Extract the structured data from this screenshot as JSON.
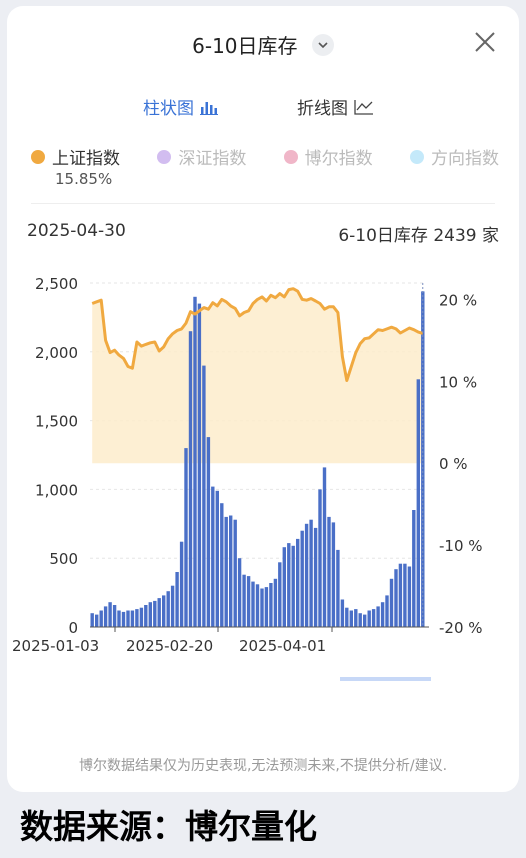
{
  "header": {
    "title": "6-10日库存"
  },
  "tabs": [
    {
      "label": "柱状图",
      "icon": "bar-chart-icon"
    },
    {
      "label": "折线图",
      "icon": "line-chart-icon"
    }
  ],
  "legend": [
    {
      "label": "上证指数",
      "color": "#f0a940",
      "active": true
    },
    {
      "label": "深证指数",
      "color": "#d2bdf0",
      "active": false
    },
    {
      "label": "博尔指数",
      "color": "#f0b6c8",
      "active": false
    },
    {
      "label": "方向指数",
      "color": "#c4e9fa",
      "active": false
    }
  ],
  "legend_value": "15.85%",
  "info": {
    "date": "2025-04-30",
    "stock_label": "6-10日库存 2439 家"
  },
  "disclaimer": "博尔数据结果仅为历史表现,无法预测未来,不提供分析/建议.",
  "source": "数据来源：博尔量化",
  "chart_data": {
    "type": "bar",
    "x_ticks": [
      "2025-01-03",
      "2025-02-20",
      "2025-04-01"
    ],
    "left_axis": {
      "ticks": [
        "0",
        "500",
        "1,000",
        "1,500",
        "2,000",
        "2,500"
      ],
      "ylim": [
        0,
        2500
      ]
    },
    "right_axis": {
      "ticks": [
        "-20 %",
        "-10 %",
        "0 %",
        "10 %",
        "20 %"
      ],
      "ylim": [
        -20,
        22
      ]
    },
    "series": [
      {
        "name": "6-10日库存",
        "color": "#4a6fc7",
        "values": [
          100,
          90,
          120,
          150,
          180,
          160,
          120,
          110,
          120,
          120,
          130,
          140,
          160,
          180,
          190,
          210,
          230,
          260,
          300,
          400,
          620,
          1300,
          2150,
          2400,
          2350,
          1900,
          1380,
          1020,
          990,
          900,
          800,
          810,
          780,
          500,
          380,
          370,
          330,
          310,
          280,
          290,
          320,
          350,
          470,
          580,
          610,
          590,
          640,
          700,
          750,
          780,
          720,
          1000,
          1160,
          800,
          760,
          560,
          200,
          140,
          120,
          130,
          100,
          90,
          120,
          130,
          150,
          180,
          230,
          350,
          420,
          460,
          460,
          440,
          850,
          1800,
          2439
        ]
      },
      {
        "name": "上证指数",
        "color": "#f0a940",
        "values": [
          19.5,
          19.7,
          19.9,
          15.0,
          13.5,
          13.8,
          13.2,
          12.8,
          11.8,
          11.6,
          14.8,
          14.3,
          14.5,
          14.7,
          14.8,
          13.7,
          14.2,
          15.2,
          15.8,
          16.2,
          16.4,
          17.1,
          18.5,
          18.2,
          18.6,
          19.0,
          18.8,
          19.6,
          19.2,
          20.0,
          19.7,
          19.2,
          18.9,
          18.0,
          18.4,
          18.6,
          19.5,
          20.0,
          20.3,
          19.8,
          20.5,
          20.2,
          20.7,
          20.3,
          21.2,
          21.3,
          21.0,
          20.0,
          19.9,
          20.1,
          19.8,
          19.5,
          18.8,
          19.1,
          19.1,
          18.4,
          13.0,
          10.1,
          11.8,
          13.5,
          14.6,
          15.2,
          15.3,
          15.8,
          16.3,
          16.2,
          16.4,
          16.6,
          16.4,
          15.9,
          16.2,
          16.5,
          16.3,
          16.0,
          15.85
        ]
      }
    ]
  }
}
